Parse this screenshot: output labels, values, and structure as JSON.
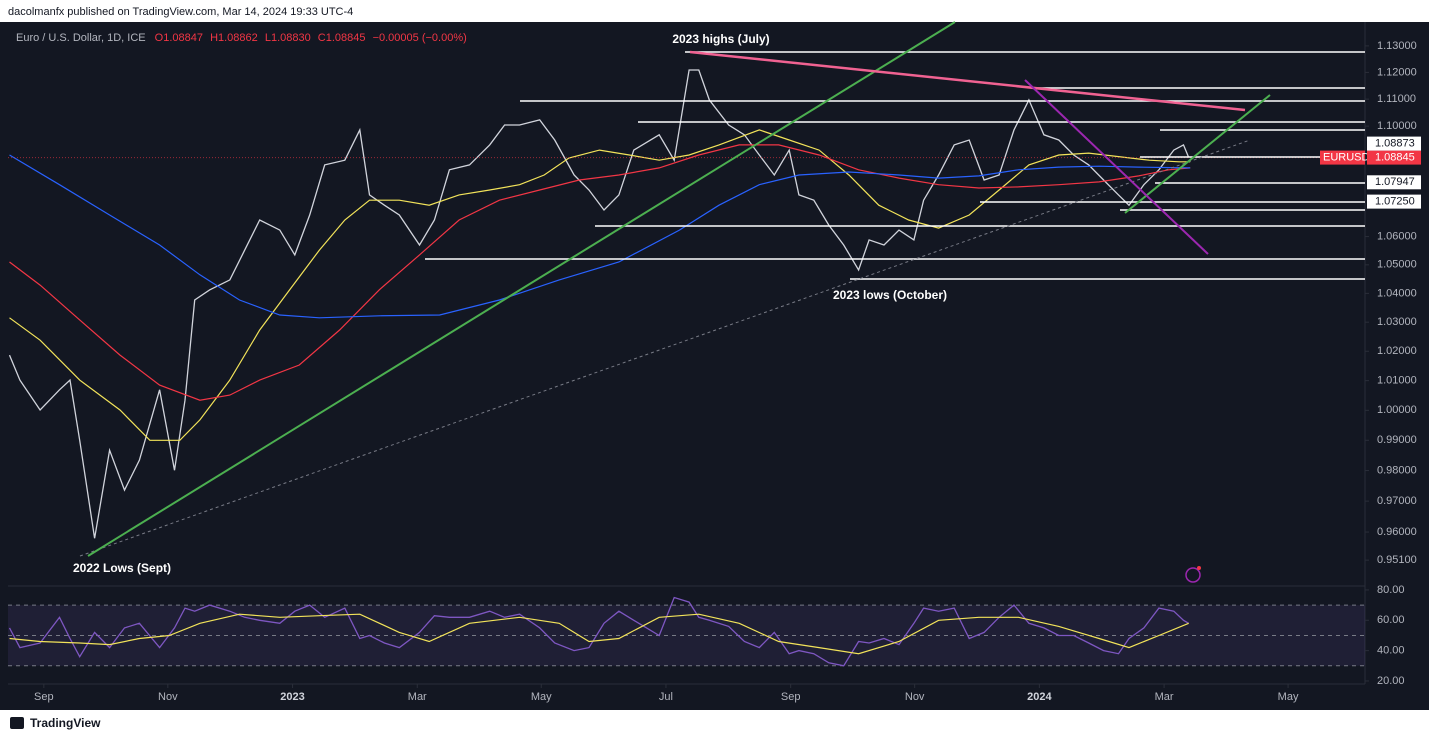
{
  "header": {
    "publisher": "dacolmanfx published on TradingView.com, Mar 14, 2024 19:33 UTC-4",
    "brand": "TradingView"
  },
  "chart_data": [
    {
      "type": "line",
      "title": "Euro / U.S. Dollar, 1D, ICE",
      "ohlc": [
        "O1.08847",
        "H1.08862",
        "L1.08830",
        "C1.08845",
        "−0.00005 (−0.00%)"
      ],
      "annotations": [
        "2023 highs (July)",
        "2023 lows (October)",
        "2022 Lows (Sept)"
      ],
      "log_scale": true,
      "xlim": [
        2022.619,
        2024.436
      ],
      "ylim": [
        0.9431,
        1.1368
      ],
      "xticks": [
        {
          "value": 2022.667,
          "label": "Sep"
        },
        {
          "value": 2022.833,
          "label": "Nov"
        },
        2023,
        {
          "value": 2023.167,
          "label": "Mar"
        },
        {
          "value": 2023.333,
          "label": "May"
        },
        {
          "value": 2023.5,
          "label": "Jul"
        },
        {
          "value": 2023.667,
          "label": "Sep"
        },
        {
          "value": 2023.833,
          "label": "Nov"
        },
        2024,
        {
          "value": 2024.167,
          "label": "Mar"
        },
        {
          "value": 2024.333,
          "label": "May"
        }
      ],
      "yticks": [
        {
          "value": 1.13,
          "label": "1.13000"
        },
        {
          "value": 1.12,
          "label": "1.12000"
        },
        {
          "value": 1.11,
          "label": "1.11000"
        },
        {
          "value": 1.1,
          "label": "1.10000"
        },
        {
          "value": 1.06,
          "label": "1.06000"
        },
        {
          "value": 1.05,
          "label": "1.05000"
        },
        {
          "value": 1.04,
          "label": "1.04000"
        },
        {
          "value": 1.03,
          "label": "1.03000"
        },
        {
          "value": 1.02,
          "label": "1.02000"
        },
        {
          "value": 1.01,
          "label": "1.01000"
        },
        {
          "value": 1,
          "label": "1.00000"
        },
        {
          "value": 0.99,
          "label": "0.99000"
        },
        {
          "value": 0.98,
          "label": "0.98000"
        },
        {
          "value": 0.97,
          "label": "0.97000"
        },
        {
          "value": 0.96,
          "label": "0.96000"
        },
        {
          "value": 0.951,
          "label": "0.95100"
        }
      ],
      "price_tags": [
        1.08873,
        1.07947,
        {
          "value": 1.0725,
          "label": "1.07250"
        }
      ],
      "last_price": 1.08845,
      "series": [
        {
          "name": "EURUSD",
          "color": "#d1d4dc",
          "x": [
            2022.621,
            2022.635,
            2022.662,
            2022.688,
            2022.702,
            2022.715,
            2022.735,
            2022.755,
            2022.775,
            2022.795,
            2022.822,
            2022.842,
            2022.856,
            2022.869,
            2022.889,
            2022.916,
            2022.936,
            2022.956,
            2022.983,
            2023.003,
            2023.023,
            2023.043,
            2023.07,
            2023.09,
            2023.103,
            2023.123,
            2023.143,
            2023.17,
            2023.19,
            2023.21,
            2023.237,
            2023.264,
            2023.284,
            2023.304,
            2023.331,
            2023.351,
            2023.377,
            2023.397,
            2023.417,
            2023.437,
            2023.457,
            2023.491,
            2023.511,
            2023.531,
            2023.544,
            2023.558,
            2023.584,
            2023.605,
            2023.625,
            2023.645,
            2023.665,
            2023.678,
            2023.698,
            2023.718,
            2023.738,
            2023.758,
            2023.772,
            2023.792,
            2023.812,
            2023.832,
            2023.845,
            2023.865,
            2023.886,
            2023.906,
            2023.926,
            2023.946,
            2023.966,
            2023.986,
            2024.006,
            2024.026,
            2024.046,
            2024.066,
            2024.086,
            2024.106,
            2024.12,
            2024.14,
            2024.16,
            2024.18,
            2024.193,
            2024.2
          ],
          "values": [
            1.0187,
            1.0102,
            1.0001,
            1.0069,
            1.0102,
            0.99,
            0.958,
            0.9867,
            0.9736,
            0.9834,
            1.0069,
            0.9801,
            1.0034,
            1.0377,
            1.0412,
            1.0447,
            1.0552,
            1.0659,
            1.0623,
            1.0535,
            1.0677,
            1.0858,
            1.0875,
            1.0986,
            1.0749,
            1.0712,
            1.0677,
            1.057,
            1.0659,
            1.084,
            1.0858,
            1.0931,
            1.1004,
            1.1004,
            1.1023,
            1.0949,
            1.0821,
            1.0767,
            1.0695,
            1.0749,
            1.0912,
            1.0968,
            1.0875,
            1.1209,
            1.1209,
            1.1097,
            1.1004,
            1.0968,
            1.0894,
            1.0821,
            1.0912,
            1.0749,
            1.073,
            1.0641,
            1.057,
            1.0482,
            1.0588,
            1.057,
            1.0623,
            1.0588,
            1.073,
            1.0821,
            1.0931,
            1.0949,
            1.0803,
            1.0821,
            1.0986,
            1.1097,
            1.0968,
            1.0949,
            1.0894,
            1.0858,
            1.0803,
            1.0749,
            1.0712,
            1.0786,
            1.084,
            1.0912,
            1.0931,
            1.0885
          ]
        },
        {
          "color": "#f2e35a",
          "x": [
            2022.621,
            2022.662,
            2022.715,
            2022.769,
            2022.809,
            2022.849,
            2022.876,
            2022.916,
            2022.956,
            2022.996,
            2023.036,
            2023.07,
            2023.103,
            2023.143,
            2023.183,
            2023.223,
            2023.264,
            2023.304,
            2023.337,
            2023.37,
            2023.411,
            2023.451,
            2023.491,
            2023.531,
            2023.571,
            2023.625,
            2023.665,
            2023.705,
            2023.745,
            2023.785,
            2023.825,
            2023.865,
            2023.906,
            2023.946,
            2023.986,
            2024.026,
            2024.066,
            2024.106,
            2024.147,
            2024.187,
            2024.202
          ],
          "values": [
            1.0315,
            1.0238,
            1.0102,
            1.0001,
            0.99,
            0.99,
            0.9968,
            1.0102,
            1.0273,
            1.0412,
            1.0552,
            1.0659,
            1.073,
            1.073,
            1.0712,
            1.0749,
            1.0767,
            1.0786,
            1.0821,
            1.0883,
            1.0912,
            1.0894,
            1.0875,
            1.0894,
            1.0931,
            1.0986,
            1.0949,
            1.0912,
            1.0821,
            1.0712,
            1.0659,
            1.063,
            1.0677,
            1.0767,
            1.0858,
            1.0894,
            1.0901,
            1.0888,
            1.0875,
            1.0869,
            1.0869
          ]
        },
        {
          "color": "#f23645",
          "x": [
            2022.621,
            2022.662,
            2022.715,
            2022.769,
            2022.822,
            2022.876,
            2022.916,
            2022.956,
            2023.009,
            2023.063,
            2023.116,
            2023.17,
            2023.223,
            2023.277,
            2023.331,
            2023.384,
            2023.437,
            2023.491,
            2023.544,
            2023.598,
            2023.651,
            2023.705,
            2023.758,
            2023.812,
            2023.865,
            2023.919,
            2023.972,
            2024.026,
            2024.08,
            2024.133,
            2024.173,
            2024.202
          ],
          "values": [
            1.051,
            1.0429,
            1.0308,
            1.0187,
            1.0085,
            1.0034,
            1.0051,
            1.0102,
            1.0153,
            1.0273,
            1.0412,
            1.0535,
            1.0659,
            1.073,
            1.0767,
            1.0803,
            1.0821,
            1.0847,
            1.0894,
            1.0931,
            1.0931,
            1.0894,
            1.084,
            1.081,
            1.0786,
            1.0774,
            1.0778,
            1.0786,
            1.0796,
            1.0818,
            1.084,
            1.0847
          ]
        },
        {
          "color": "#2962ff",
          "x": [
            2022.621,
            2022.688,
            2022.755,
            2022.822,
            2022.876,
            2022.929,
            2022.983,
            2023.036,
            2023.116,
            2023.197,
            2023.277,
            2023.357,
            2023.437,
            2023.518,
            2023.571,
            2023.625,
            2023.678,
            2023.745,
            2023.812,
            2023.865,
            2023.919,
            2023.972,
            2024.026,
            2024.08,
            2024.133,
            2024.202
          ],
          "values": [
            1.0894,
            1.0786,
            1.0677,
            1.057,
            1.0465,
            1.0377,
            1.0325,
            1.0315,
            1.0322,
            1.0325,
            1.0377,
            1.0447,
            1.051,
            1.0623,
            1.0712,
            1.0786,
            1.0821,
            1.0832,
            1.0821,
            1.081,
            1.0818,
            1.084,
            1.085,
            1.0853,
            1.085,
            1.0847
          ]
        }
      ]
    },
    {
      "type": "line",
      "xlim": [
        2022.619,
        2024.436
      ],
      "ylim": [
        18,
        82.6
      ],
      "yticks": [
        {
          "value": 80,
          "label": "80.00"
        },
        {
          "value": 60,
          "label": "60.00"
        },
        {
          "value": 40,
          "label": "40.00"
        },
        {
          "value": 20,
          "label": "20.00"
        }
      ],
      "levels": [
        70,
        50,
        30
      ],
      "series": [
        {
          "color": "#7e57c2",
          "x": [
            2022.621,
            2022.635,
            2022.662,
            2022.688,
            2022.702,
            2022.715,
            2022.735,
            2022.755,
            2022.775,
            2022.795,
            2022.822,
            2022.842,
            2022.856,
            2022.869,
            2022.889,
            2022.916,
            2022.936,
            2022.956,
            2022.983,
            2023.003,
            2023.023,
            2023.043,
            2023.07,
            2023.09,
            2023.103,
            2023.123,
            2023.143,
            2023.17,
            2023.19,
            2023.21,
            2023.237,
            2023.264,
            2023.284,
            2023.304,
            2023.331,
            2023.351,
            2023.377,
            2023.397,
            2023.417,
            2023.437,
            2023.457,
            2023.491,
            2023.511,
            2023.531,
            2023.544,
            2023.558,
            2023.584,
            2023.605,
            2023.625,
            2023.645,
            2023.665,
            2023.678,
            2023.698,
            2023.718,
            2023.738,
            2023.758,
            2023.772,
            2023.792,
            2023.812,
            2023.832,
            2023.845,
            2023.865,
            2023.886,
            2023.906,
            2023.926,
            2023.946,
            2023.966,
            2023.986,
            2024.006,
            2024.026,
            2024.046,
            2024.066,
            2024.086,
            2024.106,
            2024.12,
            2024.14,
            2024.16,
            2024.18,
            2024.193,
            2024.2
          ],
          "values": [
            55,
            42,
            45,
            62,
            48,
            36,
            52,
            42,
            55,
            58,
            42,
            55,
            68,
            66,
            70,
            66,
            62,
            60,
            58,
            66,
            70,
            62,
            68,
            48,
            50,
            45,
            42,
            52,
            63,
            62,
            62,
            66,
            62,
            64,
            55,
            45,
            40,
            42,
            58,
            66,
            60,
            50,
            75,
            72,
            62,
            60,
            56,
            46,
            42,
            52,
            38,
            40,
            38,
            32,
            30,
            46,
            45,
            48,
            44,
            58,
            68,
            66,
            68,
            48,
            52,
            62,
            70,
            58,
            55,
            50,
            50,
            45,
            40,
            38,
            48,
            55,
            68,
            66,
            60,
            58
          ]
        },
        {
          "color": "#f2e35a",
          "x": [
            2022.621,
            2022.662,
            2022.715,
            2022.755,
            2022.795,
            2022.835,
            2022.876,
            2022.929,
            2022.983,
            2023.036,
            2023.09,
            2023.143,
            2023.183,
            2023.237,
            2023.304,
            2023.357,
            2023.397,
            2023.437,
            2023.491,
            2023.544,
            2023.598,
            2023.651,
            2023.705,
            2023.758,
            2023.812,
            2023.865,
            2023.919,
            2023.972,
            2024.026,
            2024.08,
            2024.12,
            2024.16,
            2024.2
          ],
          "values": [
            48,
            46,
            45,
            44,
            48,
            50,
            58,
            64,
            62,
            63,
            64,
            52,
            46,
            58,
            62,
            58,
            46,
            48,
            62,
            64,
            58,
            46,
            42,
            38,
            46,
            60,
            62,
            62,
            56,
            48,
            42,
            50,
            58
          ]
        }
      ]
    }
  ]
}
